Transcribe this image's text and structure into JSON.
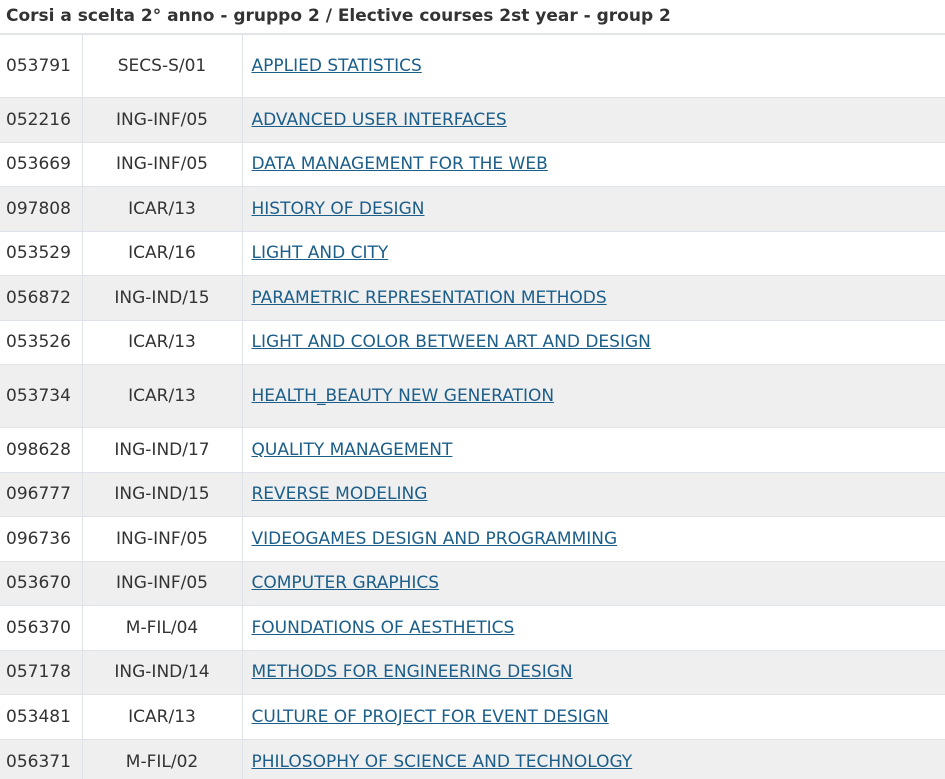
{
  "header": {
    "title": "Corsi a scelta 2° anno - gruppo 2 / Elective courses 2st year - group 2"
  },
  "table": {
    "rows": [
      [
        "053791",
        "SECS-S/01",
        "APPLIED STATISTICS"
      ],
      [
        "052216",
        "ING-INF/05",
        "ADVANCED USER INTERFACES"
      ],
      [
        "053669",
        "ING-INF/05",
        "DATA MANAGEMENT FOR THE WEB"
      ],
      [
        "097808",
        "ICAR/13",
        "HISTORY OF DESIGN"
      ],
      [
        "053529",
        "ICAR/16",
        "LIGHT AND CITY"
      ],
      [
        "056872",
        "ING-IND/15",
        "PARAMETRIC REPRESENTATION METHODS"
      ],
      [
        "053526",
        "ICAR/13",
        "LIGHT AND COLOR BETWEEN ART AND DESIGN"
      ],
      [
        "053734",
        "ICAR/13",
        "HEALTH_BEAUTY NEW GENERATION"
      ],
      [
        "098628",
        "ING-IND/17",
        "QUALITY MANAGEMENT"
      ],
      [
        "096777",
        "ING-IND/15",
        "REVERSE MODELING"
      ],
      [
        "096736",
        "ING-INF/05",
        "VIDEOGAMES DESIGN AND PROGRAMMING"
      ],
      [
        "053670",
        "ING-INF/05",
        "COMPUTER GRAPHICS"
      ],
      [
        "056370",
        "M-FIL/04",
        "FOUNDATIONS OF AESTHETICS"
      ],
      [
        "057178",
        "ING-IND/14",
        "METHODS FOR ENGINEERING DESIGN"
      ],
      [
        "053481",
        "ICAR/13",
        "CULTURE OF PROJECT FOR EVENT DESIGN"
      ],
      [
        "056371",
        "M-FIL/02",
        "PHILOSOPHY OF SCIENCE AND TECHNOLOGY"
      ]
    ]
  }
}
